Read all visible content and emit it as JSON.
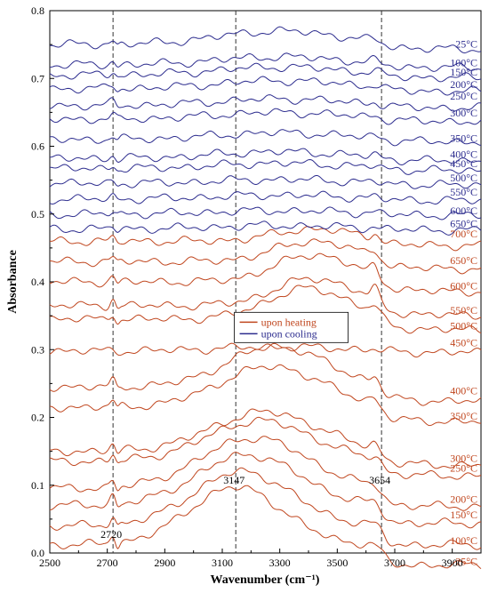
{
  "chart_data": {
    "type": "line",
    "title": "",
    "xlabel": "Wavenumber (cm⁻¹)",
    "ylabel": "Absorbance",
    "xlim": [
      2500,
      4000
    ],
    "ylim": [
      0.0,
      0.8
    ],
    "xticks": [
      "2500",
      "2700",
      "2900",
      "3100",
      "3300",
      "3500",
      "3700",
      "3900"
    ],
    "yticks": [
      "0.0",
      "0.1",
      "0.2",
      "0.3",
      "0.4",
      "0.5",
      "0.6",
      "0.7",
      "0.8"
    ],
    "grid": false,
    "colors": {
      "heating": "#c0461e",
      "cooling": "#2c2c8e"
    },
    "vlines": [
      {
        "x": 2720,
        "label": "2720"
      },
      {
        "x": 3147,
        "label": "3147"
      },
      {
        "x": 3654,
        "label": "3654"
      }
    ],
    "legend": {
      "position": "center",
      "entries": [
        {
          "label": "upon heating",
          "group": "heating"
        },
        {
          "label": "upon cooling",
          "group": "cooling"
        }
      ]
    },
    "series": [
      {
        "label": "25°C",
        "group": "heating",
        "base": 0.012,
        "broad": 0.085,
        "bcenter": 3147,
        "bwidth": 230,
        "h2720": 0.015,
        "h3654": 0.0
      },
      {
        "label": "100°C",
        "group": "heating",
        "base": 0.04,
        "broad": 0.08,
        "bcenter": 3170,
        "bwidth": 240,
        "h2720": 0.012,
        "h3654": 0.002
      },
      {
        "label": "150°C",
        "group": "heating",
        "base": 0.07,
        "broad": 0.075,
        "bcenter": 3190,
        "bwidth": 250,
        "h2720": 0.012,
        "h3654": 0.003
      },
      {
        "label": "200°C",
        "group": "heating",
        "base": 0.095,
        "broad": 0.075,
        "bcenter": 3210,
        "bwidth": 260,
        "h2720": 0.012,
        "h3654": 0.004
      },
      {
        "label": "250°C",
        "group": "heating",
        "base": 0.135,
        "broad": 0.06,
        "bcenter": 3230,
        "bwidth": 260,
        "h2720": 0.01,
        "h3654": 0.005
      },
      {
        "label": "300°C",
        "group": "heating",
        "base": 0.15,
        "broad": 0.058,
        "bcenter": 3250,
        "bwidth": 260,
        "h2720": 0.01,
        "h3654": 0.006
      },
      {
        "label": "350°C",
        "group": "heating",
        "base": 0.215,
        "broad": 0.06,
        "bcenter": 3270,
        "bwidth": 250,
        "h2720": 0.01,
        "h3654": 0.008
      },
      {
        "label": "400°C",
        "group": "heating",
        "base": 0.245,
        "broad": 0.06,
        "bcenter": 3290,
        "bwidth": 240,
        "h2720": 0.01,
        "h3654": 0.01
      },
      {
        "label": "450°C",
        "group": "heating",
        "base": 0.298,
        "broad": 0.006,
        "bcenter": 3300,
        "bwidth": 300,
        "h2720": 0.001,
        "h3654": 0.001
      },
      {
        "label": "500°C",
        "group": "heating",
        "base": 0.345,
        "broad": 0.045,
        "bcenter": 3400,
        "bwidth": 200,
        "h2720": 0.01,
        "h3654": 0.01
      },
      {
        "label": "550°C",
        "group": "heating",
        "base": 0.365,
        "broad": 0.04,
        "bcenter": 3420,
        "bwidth": 190,
        "h2720": 0.012,
        "h3654": 0.015
      },
      {
        "label": "600°C",
        "group": "heating",
        "base": 0.4,
        "broad": 0.04,
        "bcenter": 3420,
        "bwidth": 190,
        "h2720": 0.008,
        "h3654": 0.012
      },
      {
        "label": "650°C",
        "group": "heating",
        "base": 0.43,
        "broad": 0.03,
        "bcenter": 3420,
        "bwidth": 190,
        "h2720": 0.006,
        "h3654": 0.01
      },
      {
        "label": "700°C",
        "group": "heating",
        "base": 0.46,
        "broad": 0.018,
        "bcenter": 3420,
        "bwidth": 190,
        "h2720": 0.005,
        "h3654": 0.008
      },
      {
        "label": "650°C",
        "group": "cooling",
        "base": 0.478,
        "broad": 0.005,
        "bcenter": 3300,
        "bwidth": 300,
        "h2720": 0.004,
        "h3654": 0.002
      },
      {
        "label": "600°C",
        "group": "cooling",
        "base": 0.5,
        "broad": 0.005,
        "bcenter": 3300,
        "bwidth": 300,
        "h2720": 0.004,
        "h3654": 0.002
      },
      {
        "label": "550°C",
        "group": "cooling",
        "base": 0.522,
        "broad": 0.006,
        "bcenter": 3300,
        "bwidth": 300,
        "h2720": 0.004,
        "h3654": 0.002
      },
      {
        "label": "500°C",
        "group": "cooling",
        "base": 0.545,
        "broad": 0.006,
        "bcenter": 3300,
        "bwidth": 300,
        "h2720": 0.004,
        "h3654": 0.002
      },
      {
        "label": "450°C",
        "group": "cooling",
        "base": 0.567,
        "broad": 0.008,
        "bcenter": 3300,
        "bwidth": 300,
        "h2720": 0.005,
        "h3654": 0.003
      },
      {
        "label": "400°C",
        "group": "cooling",
        "base": 0.582,
        "broad": 0.01,
        "bcenter": 3300,
        "bwidth": 300,
        "h2720": 0.005,
        "h3654": 0.003
      },
      {
        "label": "350°C",
        "group": "cooling",
        "base": 0.61,
        "broad": 0.01,
        "bcenter": 3300,
        "bwidth": 300,
        "h2720": 0.005,
        "h3654": 0.003
      },
      {
        "label": "300°C",
        "group": "cooling",
        "base": 0.64,
        "broad": 0.01,
        "bcenter": 3300,
        "bwidth": 300,
        "h2720": 0.005,
        "h3654": 0.003
      },
      {
        "label": "250°C",
        "group": "cooling",
        "base": 0.66,
        "broad": 0.01,
        "bcenter": 3300,
        "bwidth": 300,
        "h2720": 0.005,
        "h3654": 0.003
      },
      {
        "label": "200°C",
        "group": "cooling",
        "base": 0.685,
        "broad": 0.012,
        "bcenter": 3300,
        "bwidth": 300,
        "h2720": 0.005,
        "h3654": 0.003
      },
      {
        "label": "150°C",
        "group": "cooling",
        "base": 0.705,
        "broad": 0.012,
        "bcenter": 3300,
        "bwidth": 300,
        "h2720": 0.005,
        "h3654": 0.003
      },
      {
        "label": "100°C",
        "group": "cooling",
        "base": 0.72,
        "broad": 0.012,
        "bcenter": 3300,
        "bwidth": 300,
        "h2720": 0.005,
        "h3654": 0.003
      },
      {
        "label": "25°C",
        "group": "cooling",
        "base": 0.75,
        "broad": 0.02,
        "bcenter": 3300,
        "bwidth": 300,
        "h2720": 0.006,
        "h3654": 0.003
      }
    ]
  }
}
